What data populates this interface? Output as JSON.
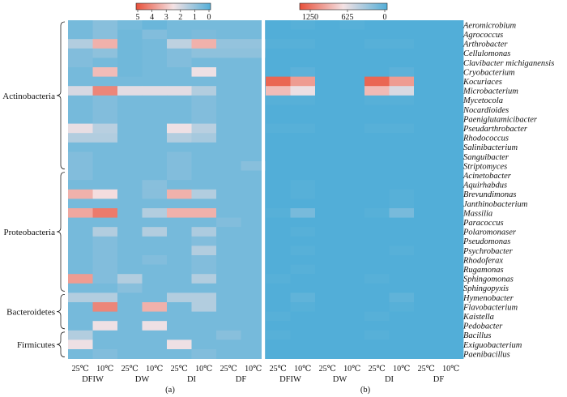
{
  "chart_data": {
    "type": "heatmap",
    "genera": [
      "Aeromicrobium",
      "Agrococcus",
      "Arthrobacter",
      "Cellulomonas",
      "Clavibacter michiganensis",
      "Cryobacterium",
      "Kocuriaces",
      "Microbacterium",
      "Mycetocola",
      "Nocardioides",
      "Paeniglutamicibacter",
      "Pseudarthrobacter",
      "Rhodococcus",
      "Salinibacterium",
      "Sanguibacter",
      "Striptomyces",
      "Acinetobacter",
      "Aquirhabdus",
      "Brevundimonas",
      "Janthinobacterium",
      "Massilia",
      "Paracoccus",
      "Polaromonaser",
      "Pseudomonas",
      "Psychrobacter",
      "Rhodoferax",
      "Rugamonas",
      "Sphingomonas",
      "Sphingopyxis",
      "Hymenobacter",
      "Flavobacterium",
      "Kaistella",
      "Pedobacter",
      "Bacillus",
      "Exiguobacterium",
      "Paenibacillus"
    ],
    "phyla": [
      {
        "name": "Actinobacteria",
        "start": 0,
        "end": 15
      },
      {
        "name": "Proteobacteria",
        "start": 16,
        "end": 28
      },
      {
        "name": "Bacteroidetes",
        "start": 29,
        "end": 32
      },
      {
        "name": "Firmicutes",
        "start": 33,
        "end": 35
      }
    ],
    "column_ticks": [
      "25℃",
      "10℃",
      "25℃",
      "10℃",
      "25℃",
      "10℃",
      "25℃",
      "10℃"
    ],
    "column_groups": [
      "DFIW",
      "DW",
      "DI",
      "DF"
    ],
    "panels": [
      {
        "label": "(a)",
        "colorbar_ticks": [
          "5",
          "4",
          "3",
          "2",
          "1",
          "0"
        ],
        "range": [
          0,
          5.4
        ],
        "values": [
          [
            0.6,
            0.9,
            0.6,
            0.4,
            0.6,
            0.6,
            0.6,
            0.6
          ],
          [
            0.6,
            0.9,
            0.5,
            0.8,
            0.6,
            0.7,
            0.6,
            0.6
          ],
          [
            1.6,
            3.6,
            0.5,
            0.6,
            1.8,
            3.6,
            1.1,
            1.1
          ],
          [
            0.8,
            1.0,
            0.5,
            0.6,
            0.8,
            1.0,
            1.0,
            1.0
          ],
          [
            0.8,
            0.6,
            0.5,
            0.6,
            0.8,
            0.6,
            0.6,
            0.6
          ],
          [
            0.6,
            3.4,
            0.5,
            0.6,
            0.6,
            2.6,
            0.6,
            0.6
          ],
          [
            0.6,
            0.6,
            0.6,
            0.6,
            0.6,
            0.6,
            0.6,
            0.6
          ],
          [
            2.2,
            4.4,
            2.4,
            2.4,
            2.4,
            1.6,
            0.6,
            0.6
          ],
          [
            0.6,
            0.8,
            0.6,
            0.6,
            0.6,
            0.8,
            0.6,
            0.6
          ],
          [
            0.6,
            0.8,
            0.6,
            0.6,
            0.6,
            0.8,
            0.6,
            0.6
          ],
          [
            0.6,
            0.8,
            0.6,
            0.6,
            0.6,
            0.8,
            0.6,
            0.6
          ],
          [
            2.5,
            1.7,
            0.6,
            0.6,
            2.6,
            1.7,
            0.6,
            0.6
          ],
          [
            1.6,
            1.6,
            0.6,
            0.6,
            1.6,
            1.4,
            0.6,
            0.6
          ],
          [
            0.6,
            0.6,
            0.6,
            0.6,
            0.6,
            0.6,
            0.6,
            0.6
          ],
          [
            0.8,
            0.6,
            0.6,
            0.6,
            0.8,
            0.6,
            0.6,
            0.6
          ],
          [
            0.8,
            0.6,
            0.6,
            0.6,
            0.8,
            0.6,
            0.6,
            0.9
          ],
          [
            0.8,
            0.6,
            0.6,
            0.6,
            0.8,
            0.6,
            0.6,
            0.6
          ],
          [
            0.6,
            0.6,
            0.6,
            0.9,
            0.6,
            0.6,
            0.6,
            0.6
          ],
          [
            3.6,
            2.8,
            0.6,
            0.9,
            3.6,
            1.6,
            0.6,
            0.6
          ],
          [
            0.6,
            0.6,
            0.6,
            0.6,
            0.6,
            0.6,
            0.6,
            0.6
          ],
          [
            3.8,
            4.6,
            0.6,
            1.6,
            3.6,
            3.6,
            0.6,
            0.6
          ],
          [
            0.6,
            0.6,
            0.6,
            0.6,
            0.6,
            0.6,
            0.8,
            0.6
          ],
          [
            0.6,
            1.6,
            0.6,
            1.6,
            0.6,
            1.5,
            0.6,
            0.6
          ],
          [
            0.6,
            0.8,
            0.6,
            0.6,
            0.6,
            0.8,
            0.6,
            0.6
          ],
          [
            0.6,
            0.8,
            0.6,
            0.6,
            0.6,
            1.6,
            0.6,
            0.6
          ],
          [
            0.6,
            0.8,
            0.6,
            0.8,
            0.6,
            0.8,
            0.6,
            0.6
          ],
          [
            0.6,
            0.8,
            0.6,
            0.6,
            0.6,
            0.8,
            0.6,
            0.6
          ],
          [
            4.0,
            0.8,
            1.6,
            0.6,
            0.6,
            1.6,
            0.6,
            0.6
          ],
          [
            0.6,
            0.6,
            0.9,
            0.6,
            0.6,
            0.6,
            0.6,
            0.6
          ],
          [
            1.6,
            1.6,
            0.6,
            0.6,
            1.6,
            1.6,
            0.6,
            0.6
          ],
          [
            0.6,
            4.4,
            0.6,
            3.6,
            0.6,
            1.6,
            0.6,
            0.6
          ],
          [
            0.6,
            0.6,
            0.6,
            0.6,
            0.6,
            0.6,
            0.6,
            0.6
          ],
          [
            0.6,
            2.6,
            0.6,
            2.6,
            0.6,
            0.6,
            0.6,
            0.6
          ],
          [
            1.6,
            0.6,
            0.6,
            0.6,
            0.6,
            0.6,
            0.9,
            0.6
          ],
          [
            2.6,
            0.6,
            0.6,
            0.6,
            2.6,
            0.6,
            0.6,
            0.6
          ],
          [
            0.6,
            0.8,
            0.6,
            0.6,
            0.6,
            0.8,
            0.6,
            0.6
          ]
        ]
      },
      {
        "label": "(b)",
        "colorbar_ticks": [
          "1250",
          "625",
          "0"
        ],
        "range": [
          0,
          1350
        ],
        "values": [
          [
            0,
            20,
            0,
            20,
            0,
            0,
            0,
            0
          ],
          [
            0,
            0,
            0,
            0,
            0,
            0,
            0,
            0
          ],
          [
            20,
            20,
            0,
            0,
            20,
            20,
            0,
            0
          ],
          [
            0,
            0,
            0,
            0,
            0,
            0,
            0,
            0
          ],
          [
            0,
            0,
            0,
            0,
            0,
            0,
            0,
            0
          ],
          [
            0,
            40,
            0,
            0,
            0,
            40,
            0,
            0
          ],
          [
            1250,
            1000,
            0,
            0,
            1250,
            1000,
            0,
            0
          ],
          [
            850,
            640,
            0,
            0,
            860,
            560,
            0,
            0
          ],
          [
            20,
            20,
            0,
            0,
            20,
            20,
            0,
            0
          ],
          [
            0,
            0,
            0,
            0,
            0,
            0,
            0,
            0
          ],
          [
            0,
            0,
            0,
            0,
            0,
            0,
            0,
            0
          ],
          [
            20,
            20,
            0,
            0,
            20,
            20,
            0,
            0
          ],
          [
            0,
            0,
            0,
            0,
            0,
            0,
            0,
            0
          ],
          [
            0,
            0,
            0,
            0,
            0,
            0,
            0,
            0
          ],
          [
            0,
            0,
            0,
            0,
            0,
            0,
            0,
            0
          ],
          [
            0,
            0,
            0,
            0,
            0,
            0,
            0,
            0
          ],
          [
            0,
            0,
            0,
            0,
            0,
            0,
            0,
            0
          ],
          [
            0,
            20,
            0,
            0,
            0,
            0,
            0,
            0
          ],
          [
            0,
            20,
            0,
            0,
            0,
            20,
            0,
            0
          ],
          [
            0,
            0,
            0,
            0,
            0,
            20,
            0,
            0
          ],
          [
            20,
            160,
            0,
            0,
            20,
            160,
            0,
            0
          ],
          [
            0,
            0,
            0,
            0,
            0,
            0,
            0,
            0
          ],
          [
            0,
            20,
            0,
            0,
            0,
            0,
            0,
            0
          ],
          [
            0,
            0,
            0,
            0,
            0,
            0,
            0,
            0
          ],
          [
            0,
            20,
            0,
            0,
            0,
            20,
            0,
            0
          ],
          [
            0,
            0,
            0,
            0,
            0,
            0,
            0,
            0
          ],
          [
            0,
            20,
            0,
            0,
            0,
            0,
            0,
            0
          ],
          [
            20,
            0,
            0,
            0,
            20,
            0,
            0,
            0
          ],
          [
            0,
            0,
            0,
            0,
            0,
            0,
            0,
            0
          ],
          [
            0,
            60,
            0,
            0,
            0,
            60,
            0,
            0
          ],
          [
            0,
            20,
            0,
            0,
            0,
            20,
            0,
            0
          ],
          [
            20,
            0,
            0,
            0,
            20,
            0,
            0,
            0
          ],
          [
            0,
            0,
            0,
            0,
            0,
            0,
            0,
            0
          ],
          [
            20,
            0,
            0,
            0,
            20,
            0,
            0,
            0
          ],
          [
            0,
            0,
            0,
            0,
            0,
            0,
            0,
            0
          ],
          [
            0,
            0,
            0,
            0,
            0,
            0,
            0,
            0
          ]
        ]
      }
    ]
  }
}
